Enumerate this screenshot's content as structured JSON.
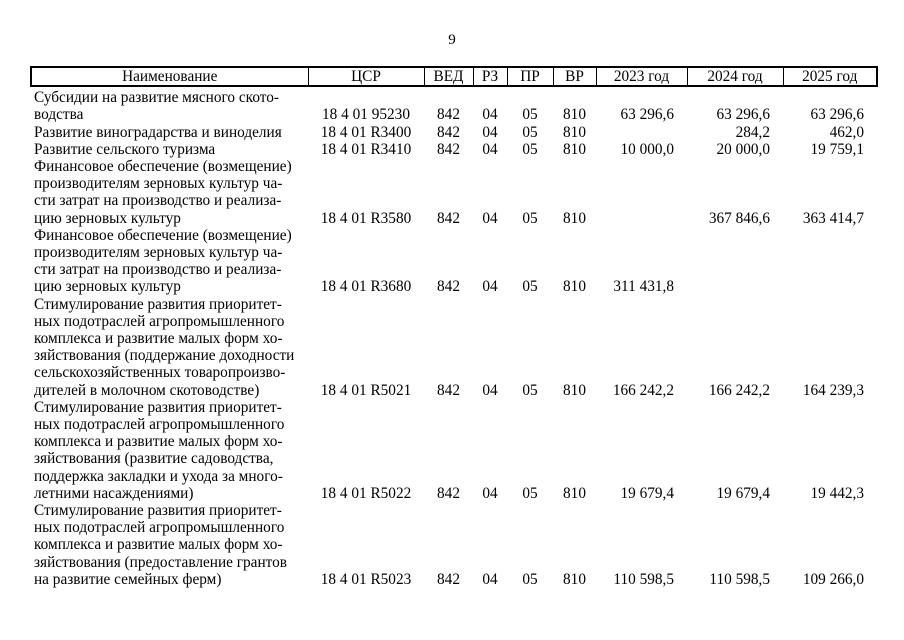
{
  "page": {
    "number": "9"
  },
  "table": {
    "columns": [
      {
        "key": "name",
        "label": "Наименование"
      },
      {
        "key": "csr",
        "label": "ЦСР"
      },
      {
        "key": "ved",
        "label": "ВЕД"
      },
      {
        "key": "rz",
        "label": "РЗ"
      },
      {
        "key": "pr",
        "label": "ПР"
      },
      {
        "key": "vr",
        "label": "ВР"
      },
      {
        "key": "y2023",
        "label": "2023 год"
      },
      {
        "key": "y2024",
        "label": "2024 год"
      },
      {
        "key": "y2025",
        "label": "2025 год"
      }
    ],
    "rows": [
      {
        "name_lines": [
          "Субсидии на развитие мясного ското-",
          "водства"
        ],
        "csr": "18 4 01 95230",
        "ved": "842",
        "rz": "04",
        "pr": "05",
        "vr": "810",
        "y2023": "63 296,6",
        "y2024": "63 296,6",
        "y2025": "63 296,6"
      },
      {
        "name_lines": [
          "Развитие виноградарства и виноделия"
        ],
        "csr": "18 4 01 R3400",
        "ved": "842",
        "rz": "04",
        "pr": "05",
        "vr": "810",
        "y2023": "",
        "y2024": "284,2",
        "y2025": "462,0"
      },
      {
        "name_lines": [
          "Развитие сельского туризма"
        ],
        "csr": "18 4 01 R3410",
        "ved": "842",
        "rz": "04",
        "pr": "05",
        "vr": "810",
        "y2023": "10 000,0",
        "y2024": "20 000,0",
        "y2025": "19 759,1"
      },
      {
        "name_lines": [
          "Финансовое обеспечение (возмещение)",
          "производителям зерновых культур ча-",
          "сти затрат на производство и реализа-",
          "цию зерновых культур"
        ],
        "csr": "18 4 01 R3580",
        "ved": "842",
        "rz": "04",
        "pr": "05",
        "vr": "810",
        "y2023": "",
        "y2024": "367 846,6",
        "y2025": "363 414,7"
      },
      {
        "name_lines": [
          "Финансовое обеспечение (возмещение)",
          "производителям зерновых культур ча-",
          "сти затрат на производство и реализа-",
          "цию зерновых культур"
        ],
        "csr": "18 4 01 R3680",
        "ved": "842",
        "rz": "04",
        "pr": "05",
        "vr": "810",
        "y2023": "311 431,8",
        "y2024": "",
        "y2025": ""
      },
      {
        "name_lines": [
          "Стимулирование развития приоритет-",
          "ных подотраслей агропромышленного",
          "комплекса и развитие малых форм хо-",
          "зяйствования (поддержание доходности",
          "сельскохозяйственных товаропроизво-",
          "дителей в молочном скотоводстве)"
        ],
        "csr": "18 4 01 R5021",
        "ved": "842",
        "rz": "04",
        "pr": "05",
        "vr": "810",
        "y2023": "166 242,2",
        "y2024": "166 242,2",
        "y2025": "164 239,3"
      },
      {
        "name_lines": [
          "Стимулирование развития приоритет-",
          "ных подотраслей агропромышленного",
          "комплекса и развитие малых форм хо-",
          "зяйствования (развитие садоводства,",
          "поддержка закладки и ухода за много-",
          "летними насаждениями)"
        ],
        "csr": "18 4 01 R5022",
        "ved": "842",
        "rz": "04",
        "pr": "05",
        "vr": "810",
        "y2023": "19 679,4",
        "y2024": "19 679,4",
        "y2025": "19 442,3"
      },
      {
        "name_lines": [
          "Стимулирование развития приоритет-",
          "ных подотраслей агропромышленного",
          "комплекса и развитие малых форм хо-",
          "зяйствования (предоставление грантов",
          "на развитие семейных ферм)"
        ],
        "csr": "18 4 01 R5023",
        "ved": "842",
        "rz": "04",
        "pr": "05",
        "vr": "810",
        "y2023": "110 598,5",
        "y2024": "110 598,5",
        "y2025": "109 266,0"
      }
    ]
  }
}
